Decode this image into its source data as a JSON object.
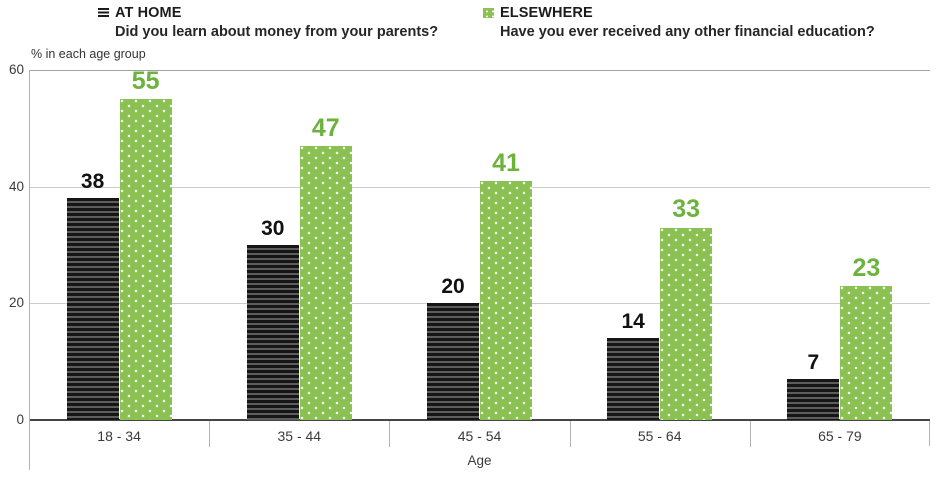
{
  "legend": {
    "items": [
      {
        "name": "AT HOME",
        "question": "Did you learn about money from your parents?",
        "swatch": "horizontal-stripes-icon",
        "color": "#1b1b1b"
      },
      {
        "name": "ELSEWHERE",
        "question": "Have you ever received any other financial education?",
        "swatch": "dots-icon",
        "color": "#8bc152"
      }
    ]
  },
  "chart_data": {
    "type": "bar",
    "categories": [
      "18 - 34",
      "35 - 44",
      "45 - 54",
      "55 - 64",
      "65 - 79"
    ],
    "series": [
      {
        "name": "AT HOME",
        "values": [
          38,
          30,
          20,
          14,
          7
        ],
        "pattern": "horizontal-stripes",
        "color": "#161616",
        "label_color": "#111111"
      },
      {
        "name": "ELSEWHERE",
        "values": [
          55,
          47,
          41,
          33,
          23
        ],
        "pattern": "white-dots",
        "color": "#8bc152",
        "label_color": "#6cb33d"
      }
    ],
    "title": "",
    "xlabel": "Age",
    "ylabel": "% in each age group",
    "ylim": [
      0,
      60
    ],
    "yticks": [
      0,
      20,
      40,
      60
    ],
    "grid": "horizontal",
    "legend_position": "top"
  }
}
